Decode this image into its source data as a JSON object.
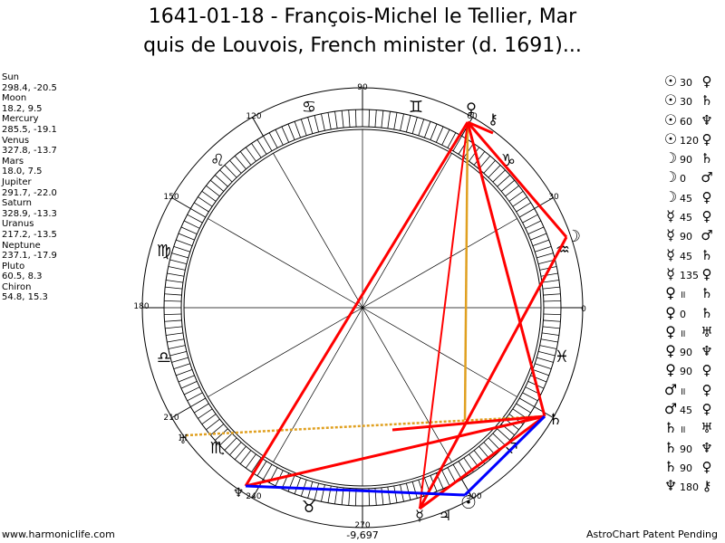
{
  "title": {
    "line1": "1641-01-18 - François-Michel le Tellier, Mar",
    "line2": "quis de Louvois, French minister (d. 1691)..."
  },
  "planets": [
    {
      "name": "Sun",
      "coords": "298.4, -20.5"
    },
    {
      "name": "Moon",
      "coords": "18.2, 9.5"
    },
    {
      "name": "Mercury",
      "coords": "285.5, -19.1"
    },
    {
      "name": "Venus",
      "coords": "327.8, -13.7"
    },
    {
      "name": "Mars",
      "coords": "18.0, 7.5"
    },
    {
      "name": "Jupiter",
      "coords": "291.7, -22.0"
    },
    {
      "name": "Saturn",
      "coords": "328.9, -13.3"
    },
    {
      "name": "Uranus",
      "coords": "217.2, -13.5"
    },
    {
      "name": "Neptune",
      "coords": "237.1, -17.9"
    },
    {
      "name": "Pluto",
      "coords": "60.5, 8.3"
    },
    {
      "name": "Chiron",
      "coords": "54.8, 15.3"
    }
  ],
  "aspects": [
    {
      "p1": "☉",
      "angle": "30",
      "p2": "♀"
    },
    {
      "p1": "☉",
      "angle": "30",
      "p2": "♄"
    },
    {
      "p1": "☉",
      "angle": "60",
      "p2": "♆"
    },
    {
      "p1": "☉",
      "angle": "120",
      "p2": "♀"
    },
    {
      "p1": "☽",
      "angle": "90",
      "p2": "♄"
    },
    {
      "p1": "☽",
      "angle": "0",
      "p2": "♂"
    },
    {
      "p1": "☽",
      "angle": "45",
      "p2": "♀"
    },
    {
      "p1": "☿",
      "angle": "45",
      "p2": "♀"
    },
    {
      "p1": "☿",
      "angle": "90",
      "p2": "♂"
    },
    {
      "p1": "☿",
      "angle": "45",
      "p2": "♄"
    },
    {
      "p1": "☿",
      "angle": "135",
      "p2": "♀"
    },
    {
      "p1": "♀",
      "angle": "॥",
      "p2": "♄"
    },
    {
      "p1": "♀",
      "angle": "0",
      "p2": "♄"
    },
    {
      "p1": "♀",
      "angle": "॥",
      "p2": "♅"
    },
    {
      "p1": "♀",
      "angle": "90",
      "p2": "♆"
    },
    {
      "p1": "♀",
      "angle": "90",
      "p2": "♀"
    },
    {
      "p1": "♂",
      "angle": "॥",
      "p2": "♀"
    },
    {
      "p1": "♂",
      "angle": "45",
      "p2": "♀"
    },
    {
      "p1": "♄",
      "angle": "॥",
      "p2": "♅"
    },
    {
      "p1": "♄",
      "angle": "90",
      "p2": "♆"
    },
    {
      "p1": "♄",
      "angle": "90",
      "p2": "♀"
    },
    {
      "p1": "♆",
      "angle": "180",
      "p2": "⚷"
    }
  ],
  "wheel": {
    "degree_labels": [
      "0",
      "30",
      "60",
      "90",
      "120",
      "150",
      "180",
      "210",
      "240",
      "270",
      "300"
    ],
    "zodiac_glyphs": [
      "♓",
      "♒",
      "♑",
      "♐",
      "♏",
      "♎",
      "♍",
      "♌",
      "♋",
      "♊",
      "♉"
    ],
    "bottom_value": "-9,697"
  },
  "chart_planet_glyphs": {
    "pluto": "♀",
    "chiron": "⚷",
    "moon_mars": "☽",
    "saturn_venus": "♄",
    "uranus": "♅",
    "neptune": "♆",
    "jupiter": "♃",
    "sun": "☉",
    "mercury_venus": "☿"
  },
  "colors": {
    "aspect_red": "#ff0000",
    "aspect_blue": "#0000ff",
    "aspect_gold": "#e0a020"
  },
  "footer": {
    "left": "www.harmoniclife.com",
    "right": "AstroChart Patent Pending"
  }
}
